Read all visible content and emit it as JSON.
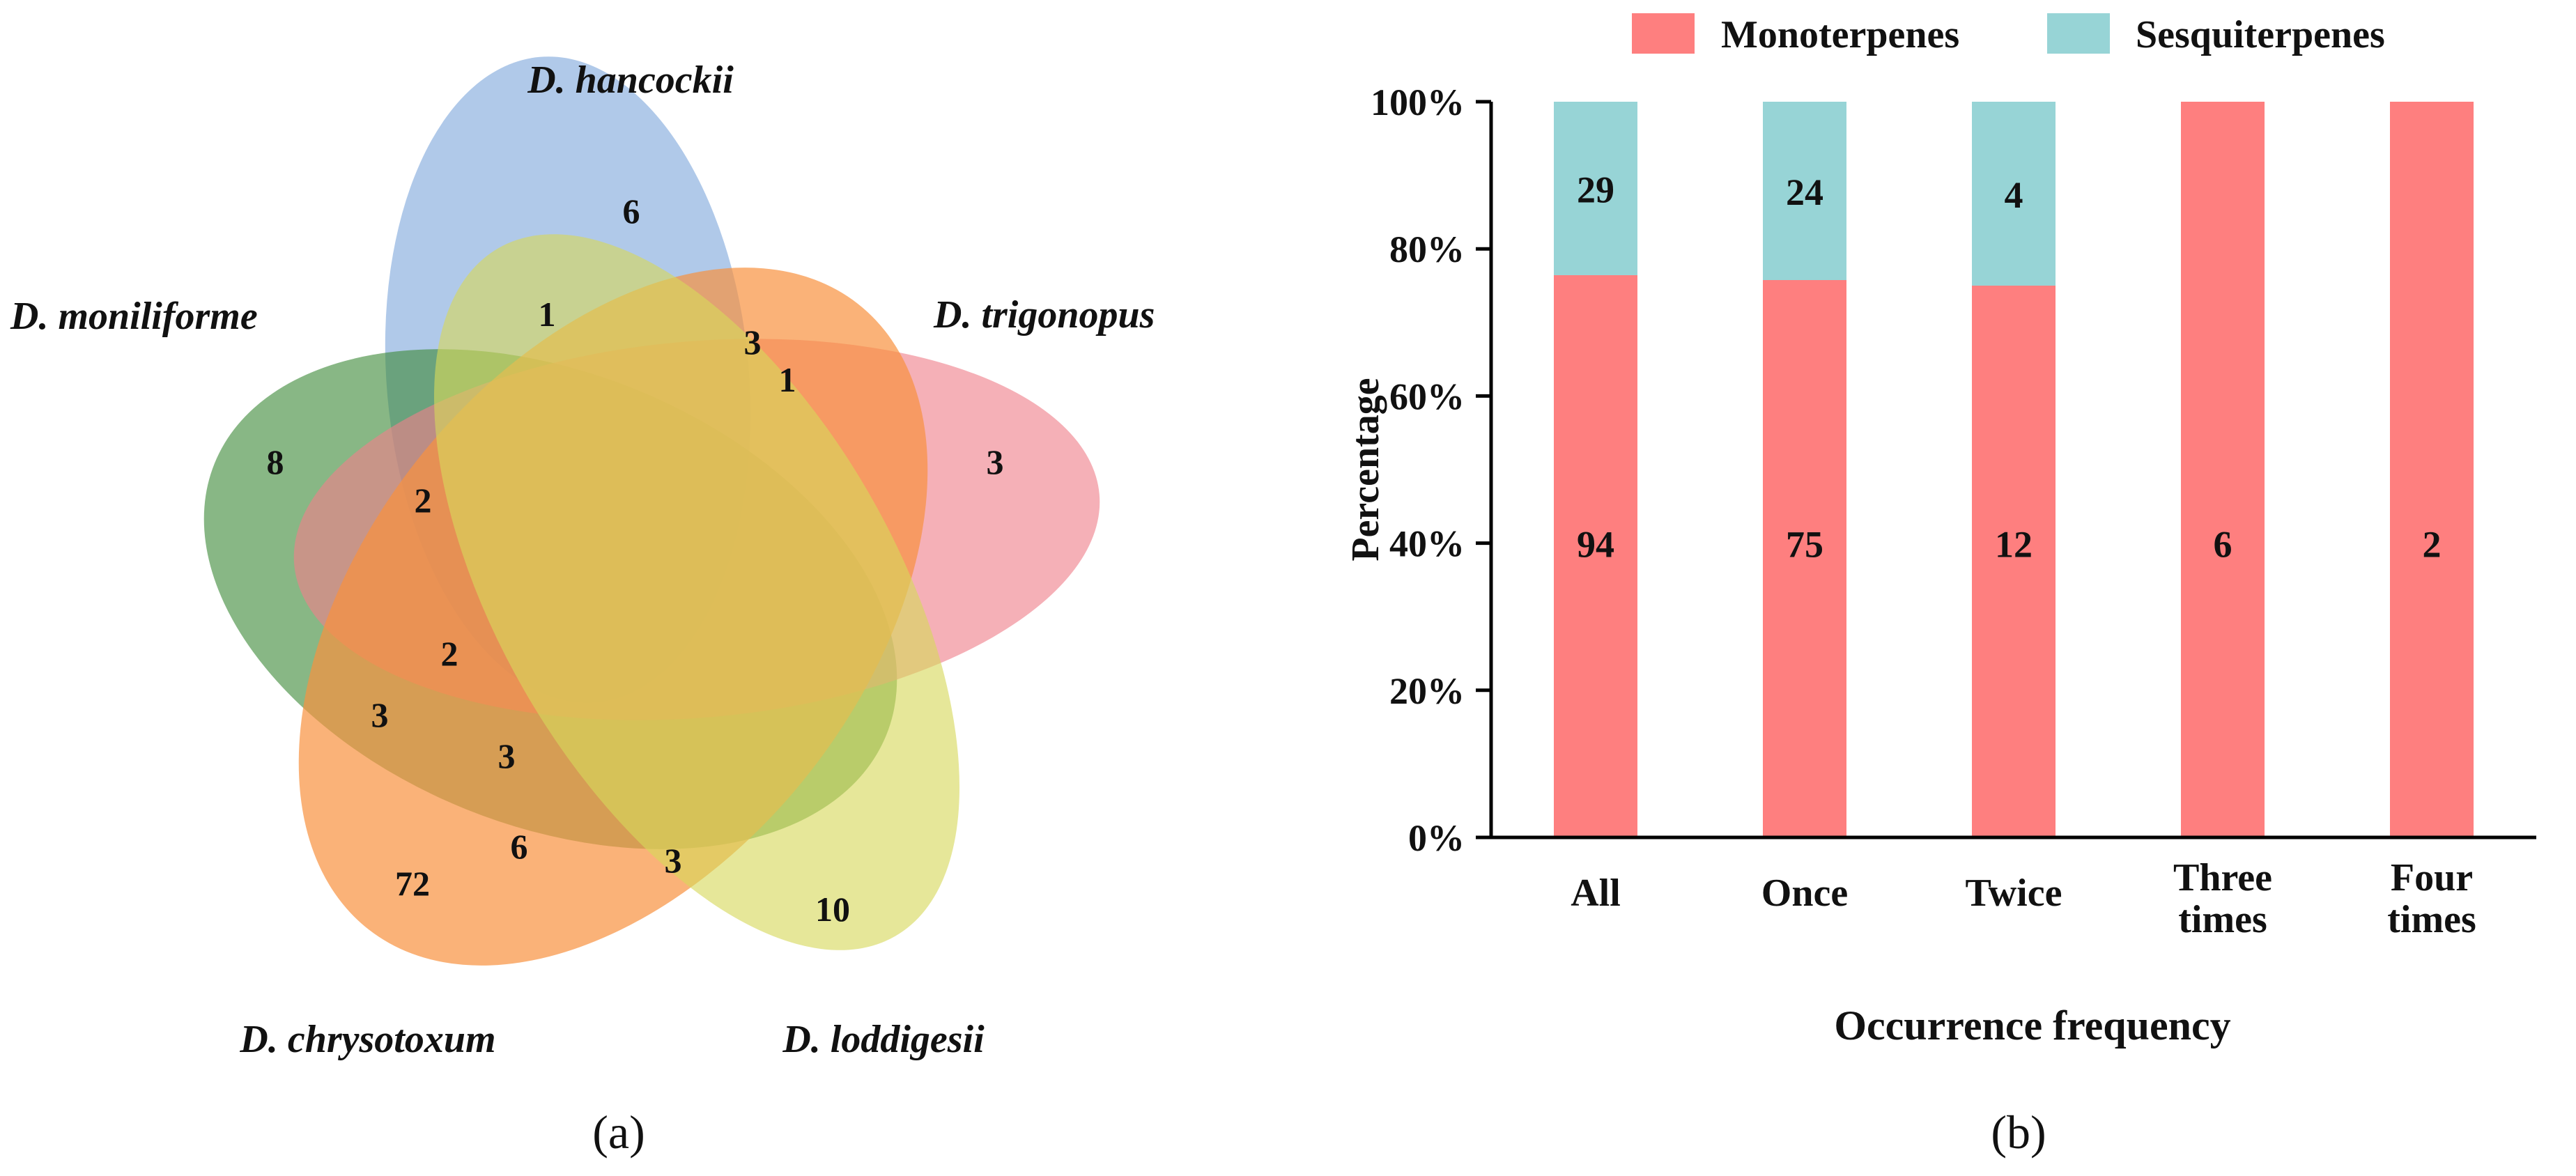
{
  "venn": {
    "species": [
      {
        "name": "D. hancockii",
        "color": "#7fa8db"
      },
      {
        "name": "D. trigonopus",
        "color": "#ef7f8a"
      },
      {
        "name": "D. loddigesii",
        "color": "#d6d95a"
      },
      {
        "name": "D. chrysotoxum",
        "color": "#f8923f"
      },
      {
        "name": "D. moniliforme",
        "color": "#3f8a3a"
      }
    ],
    "counts": [
      "6",
      "1",
      "3",
      "1",
      "3",
      "8",
      "2",
      "2",
      "3",
      "3",
      "6",
      "72",
      "3",
      "10"
    ],
    "caption": "(a)"
  },
  "chart_data": {
    "type": "bar",
    "stacked": true,
    "normalized": true,
    "categories": [
      "All",
      "Once",
      "Twice",
      "Three times",
      "Four times"
    ],
    "category_lines": [
      [
        "All"
      ],
      [
        "Once"
      ],
      [
        "Twice"
      ],
      [
        "Three",
        "times"
      ],
      [
        "Four",
        "times"
      ]
    ],
    "series": [
      {
        "name": "Monoterpenes",
        "values": [
          94,
          75,
          12,
          6,
          2
        ],
        "labels": [
          "94",
          "75",
          "12",
          "6",
          "2"
        ],
        "color": "#fe7f7f"
      },
      {
        "name": "Sesquiterpenes",
        "values": [
          29,
          24,
          4,
          0,
          0
        ],
        "labels": [
          "29",
          "24",
          "4",
          "",
          ""
        ],
        "color": "#97d4d6"
      }
    ],
    "title": "",
    "xlabel": "Occurrence frequency",
    "ylabel": "Percentage",
    "ylim": [
      0,
      100
    ],
    "yticks": [
      "0%",
      "20%",
      "40%",
      "60%",
      "80%",
      "100%"
    ],
    "legend_position": "top",
    "caption": "(b)"
  }
}
